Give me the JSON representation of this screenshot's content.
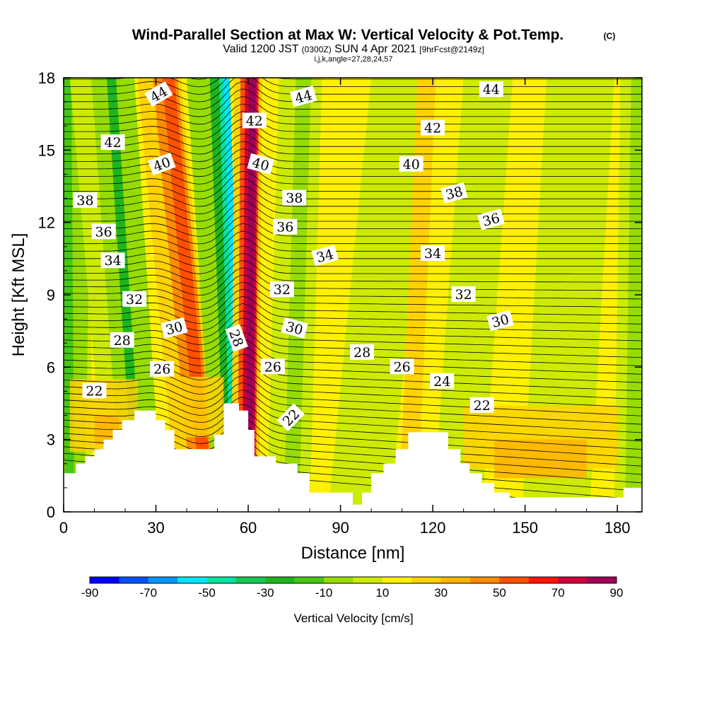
{
  "header": {
    "title": "Wind-Parallel Section at Max W: Vertical Velocity & Pot.Temp.",
    "title_mark": "(C)",
    "valid_prefix": "Valid 1200 JST",
    "valid_utc": "(0300Z)",
    "valid_date": "SUN 4 Apr 2021",
    "forecast": "[9hrFcst@2149z]",
    "params": "i,j,k,angle=27,28,24,57"
  },
  "chart_data": {
    "type": "heatmap",
    "xlabel": "Distance [nm]",
    "ylabel": "Height [Kft MSL]",
    "xlim": [
      0,
      188
    ],
    "ylim": [
      0,
      18
    ],
    "x_ticks": [
      "0",
      "30",
      "60",
      "90",
      "120",
      "150",
      "180"
    ],
    "y_ticks": [
      "0",
      "3",
      "6",
      "9",
      "12",
      "15",
      "18"
    ],
    "colorbar": {
      "label": "Vertical Velocity [cm/s]",
      "tick_labels": [
        "-90",
        "-70",
        "-50",
        "-30",
        "-10",
        "10",
        "30",
        "50",
        "70",
        "90"
      ],
      "levels": [
        -90,
        -80,
        -70,
        -60,
        -50,
        -40,
        -30,
        -20,
        -10,
        0,
        10,
        20,
        30,
        40,
        50,
        60,
        70,
        80,
        90
      ],
      "colors": [
        "#0000ff",
        "#0050ff",
        "#0096ff",
        "#00e6ff",
        "#00e6a0",
        "#14c850",
        "#1eb41e",
        "#46c814",
        "#96dc00",
        "#cdeb00",
        "#fff000",
        "#ffd200",
        "#ffb400",
        "#ff8c00",
        "#ff5000",
        "#ff1400",
        "#d2003c",
        "#a0005a",
        "#780078"
      ]
    },
    "terrain_kft": [
      [
        0,
        1.6
      ],
      [
        4,
        1.6
      ],
      [
        4,
        2.0
      ],
      [
        7,
        2.0
      ],
      [
        7,
        2.3
      ],
      [
        10,
        2.3
      ],
      [
        10,
        2.6
      ],
      [
        13,
        2.6
      ],
      [
        13,
        3.0
      ],
      [
        16,
        3.0
      ],
      [
        16,
        3.4
      ],
      [
        19,
        3.4
      ],
      [
        19,
        3.8
      ],
      [
        23,
        3.8
      ],
      [
        23,
        4.2
      ],
      [
        30,
        4.2
      ],
      [
        30,
        3.8
      ],
      [
        33,
        3.8
      ],
      [
        33,
        3.4
      ],
      [
        36,
        3.4
      ],
      [
        36,
        2.6
      ],
      [
        49,
        2.6
      ],
      [
        49,
        3.2
      ],
      [
        52,
        3.2
      ],
      [
        52,
        4.5
      ],
      [
        57,
        4.5
      ],
      [
        57,
        4.2
      ],
      [
        60,
        4.2
      ],
      [
        60,
        3.4
      ],
      [
        62,
        3.4
      ],
      [
        62,
        2.3
      ],
      [
        69,
        2.3
      ],
      [
        69,
        2.0
      ],
      [
        76,
        2.0
      ],
      [
        76,
        1.6
      ],
      [
        80,
        1.6
      ],
      [
        80,
        0.8
      ],
      [
        94,
        0.8
      ],
      [
        94,
        0.3
      ],
      [
        97,
        0.3
      ],
      [
        97,
        0.8
      ],
      [
        100,
        0.8
      ],
      [
        100,
        1.6
      ],
      [
        104,
        1.6
      ],
      [
        104,
        2.0
      ],
      [
        108,
        2.0
      ],
      [
        108,
        2.6
      ],
      [
        112,
        2.6
      ],
      [
        112,
        3.3
      ],
      [
        125,
        3.3
      ],
      [
        125,
        2.6
      ],
      [
        129,
        2.6
      ],
      [
        129,
        2.0
      ],
      [
        132,
        2.0
      ],
      [
        132,
        1.6
      ],
      [
        136,
        1.6
      ],
      [
        136,
        1.2
      ],
      [
        140,
        1.2
      ],
      [
        140,
        0.8
      ],
      [
        145,
        0.8
      ],
      [
        145,
        0.6
      ],
      [
        182,
        0.6
      ],
      [
        182,
        1.0
      ],
      [
        188,
        1.0
      ]
    ],
    "isentrope_labels": [
      {
        "text": "44",
        "x": 31,
        "y": 17.3,
        "rot": -30
      },
      {
        "text": "44",
        "x": 78,
        "y": 17.2,
        "rot": -15
      },
      {
        "text": "44",
        "x": 139,
        "y": 17.5,
        "rot": 0
      },
      {
        "text": "42",
        "x": 16,
        "y": 15.3,
        "rot": 0
      },
      {
        "text": "42",
        "x": 62,
        "y": 16.2,
        "rot": 0
      },
      {
        "text": "42",
        "x": 120,
        "y": 15.9,
        "rot": 0
      },
      {
        "text": "40",
        "x": 32,
        "y": 14.4,
        "rot": -20
      },
      {
        "text": "40",
        "x": 64,
        "y": 14.4,
        "rot": 15
      },
      {
        "text": "40",
        "x": 113,
        "y": 14.4,
        "rot": 0
      },
      {
        "text": "38",
        "x": 7,
        "y": 12.9,
        "rot": 0
      },
      {
        "text": "38",
        "x": 75,
        "y": 13.0,
        "rot": 0
      },
      {
        "text": "38",
        "x": 127,
        "y": 13.2,
        "rot": -15
      },
      {
        "text": "36",
        "x": 13,
        "y": 11.6,
        "rot": 0
      },
      {
        "text": "36",
        "x": 72,
        "y": 11.8,
        "rot": 0
      },
      {
        "text": "36",
        "x": 139,
        "y": 12.1,
        "rot": -15
      },
      {
        "text": "34",
        "x": 16,
        "y": 10.4,
        "rot": 0
      },
      {
        "text": "34",
        "x": 85,
        "y": 10.6,
        "rot": -15
      },
      {
        "text": "34",
        "x": 120,
        "y": 10.7,
        "rot": 0
      },
      {
        "text": "32",
        "x": 23,
        "y": 8.8,
        "rot": 0
      },
      {
        "text": "32",
        "x": 71,
        "y": 9.2,
        "rot": 0
      },
      {
        "text": "32",
        "x": 130,
        "y": 9.0,
        "rot": 0
      },
      {
        "text": "30",
        "x": 36,
        "y": 7.6,
        "rot": -15
      },
      {
        "text": "30",
        "x": 75,
        "y": 7.6,
        "rot": 15
      },
      {
        "text": "30",
        "x": 142,
        "y": 7.9,
        "rot": -15
      },
      {
        "text": "28",
        "x": 19,
        "y": 7.1,
        "rot": 0
      },
      {
        "text": "28",
        "x": 56,
        "y": 7.2,
        "rot": 70
      },
      {
        "text": "28",
        "x": 97,
        "y": 6.6,
        "rot": 0
      },
      {
        "text": "26",
        "x": 32,
        "y": 5.9,
        "rot": 0
      },
      {
        "text": "26",
        "x": 68,
        "y": 6.0,
        "rot": 0
      },
      {
        "text": "26",
        "x": 110,
        "y": 6.0,
        "rot": 0
      },
      {
        "text": "24",
        "x": 123,
        "y": 5.4,
        "rot": 0
      },
      {
        "text": "22",
        "x": 10,
        "y": 5.0,
        "rot": 0
      },
      {
        "text": "22",
        "x": 74,
        "y": 3.9,
        "rot": -45
      },
      {
        "text": "22",
        "x": 136,
        "y": 4.4,
        "rot": 0
      }
    ]
  }
}
